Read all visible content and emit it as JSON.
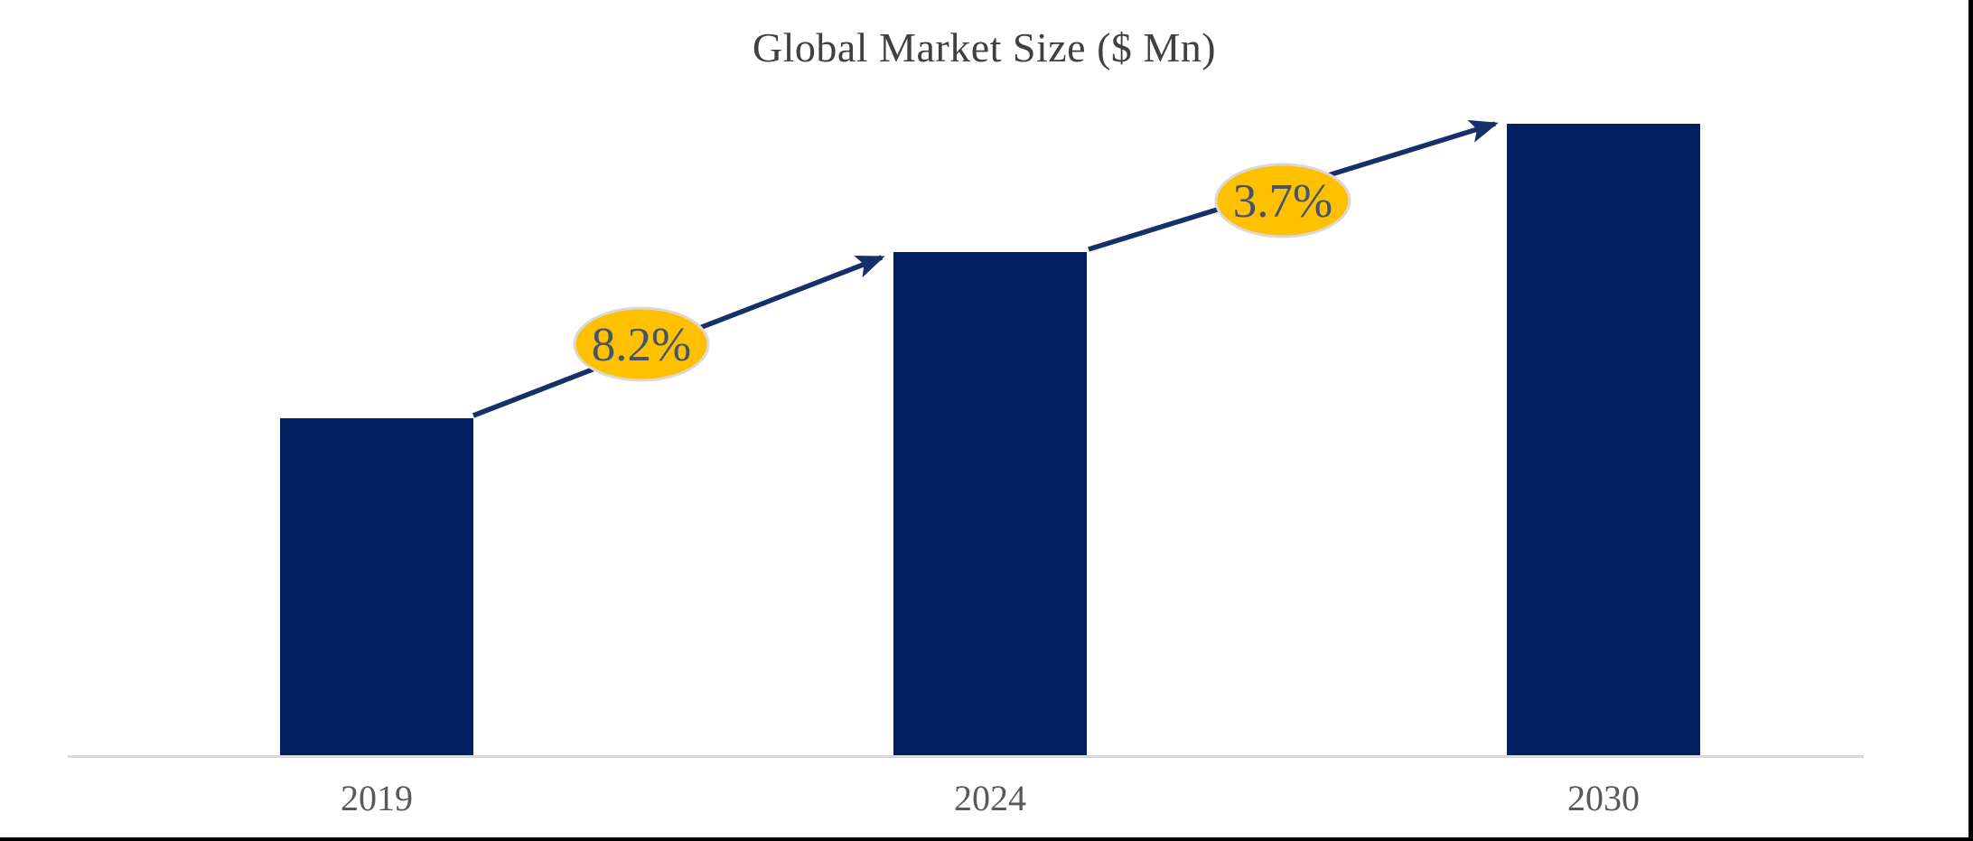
{
  "chart_data": {
    "type": "bar",
    "title": "Global Market Size ($ Mn)",
    "categories": [
      "2019",
      "2024",
      "2030"
    ],
    "series": [
      {
        "name": "Global Market Size",
        "values_relative_estimated": [
          100,
          149,
          187
        ]
      }
    ],
    "value_labels_shown": false,
    "value_axis_shown": false,
    "grid": false,
    "legend": false,
    "xlabel": "",
    "ylabel": "",
    "growth_annotations": [
      {
        "from": "2019",
        "to": "2024",
        "label": "8.2%"
      },
      {
        "from": "2024",
        "to": "2030",
        "label": "3.7%"
      }
    ],
    "colors": {
      "bar_fill": "#002060",
      "arrow": "#17306b",
      "annotation_ellipse_fill": "#ffc000",
      "annotation_ellipse_stroke": "#d9d9d9",
      "annotation_text": "#44546a",
      "title_text": "#404040",
      "axis_tick_text": "#595959",
      "axis_line": "#d9d9d9",
      "frame_border": "#000000"
    }
  }
}
